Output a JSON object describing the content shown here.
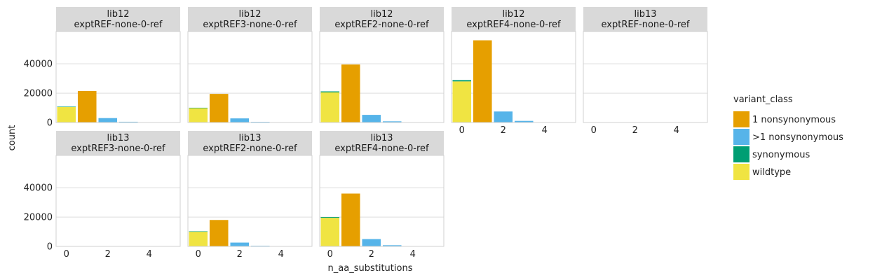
{
  "chart_data": {
    "type": "bar",
    "facet": "faceted stacked bar chart",
    "xlabel": "n_aa_substitutions",
    "ylabel": "count",
    "xlim": [
      -0.5,
      5.5
    ],
    "ylim": [
      0,
      62000
    ],
    "x_ticks": [
      0,
      2,
      4
    ],
    "y_ticks": [
      0,
      20000,
      40000
    ],
    "x_tick_labels": [
      "0",
      "2",
      "4"
    ],
    "y_tick_labels": [
      "0",
      "20000",
      "40000"
    ],
    "grid": true,
    "legend": {
      "title": "variant_class",
      "position": "right",
      "entries": [
        {
          "name": "1 nonsynonymous",
          "color": "#E69F00"
        },
        {
          "name": ">1 nonsynonymous",
          "color": "#56B4E9"
        },
        {
          "name": "synonymous",
          "color": "#009E73"
        },
        {
          "name": "wildtype",
          "color": "#F0E442"
        }
      ]
    },
    "panels": [
      {
        "strip": [
          "lib12",
          "exptREF-none-0-ref"
        ],
        "bars": [
          {
            "x": 0,
            "segments": [
              {
                "class": "wildtype",
                "value": 10500
              },
              {
                "class": "synonymous",
                "value": 300
              }
            ]
          },
          {
            "x": 1,
            "segments": [
              {
                "class": "1 nonsynonymous",
                "value": 21500
              }
            ]
          },
          {
            "x": 2,
            "segments": [
              {
                "class": ">1 nonsynonymous",
                "value": 3000
              }
            ]
          },
          {
            "x": 3,
            "segments": [
              {
                "class": ">1 nonsynonymous",
                "value": 500
              }
            ]
          },
          {
            "x": 4,
            "segments": [
              {
                "class": ">1 nonsynonymous",
                "value": 80
              }
            ]
          }
        ]
      },
      {
        "strip": [
          "lib12",
          "exptREF3-none-0-ref"
        ],
        "bars": [
          {
            "x": 0,
            "segments": [
              {
                "class": "wildtype",
                "value": 9800
              },
              {
                "class": "synonymous",
                "value": 250
              }
            ]
          },
          {
            "x": 1,
            "segments": [
              {
                "class": "1 nonsynonymous",
                "value": 19500
              }
            ]
          },
          {
            "x": 2,
            "segments": [
              {
                "class": ">1 nonsynonymous",
                "value": 2800
              }
            ]
          },
          {
            "x": 3,
            "segments": [
              {
                "class": ">1 nonsynonymous",
                "value": 450
              }
            ]
          },
          {
            "x": 4,
            "segments": [
              {
                "class": ">1 nonsynonymous",
                "value": 70
              }
            ]
          }
        ]
      },
      {
        "strip": [
          "lib12",
          "exptREF2-none-0-ref"
        ],
        "bars": [
          {
            "x": 0,
            "segments": [
              {
                "class": "wildtype",
                "value": 20500
              },
              {
                "class": "synonymous",
                "value": 700
              }
            ]
          },
          {
            "x": 1,
            "segments": [
              {
                "class": "1 nonsynonymous",
                "value": 39500
              }
            ]
          },
          {
            "x": 2,
            "segments": [
              {
                "class": ">1 nonsynonymous",
                "value": 5200
              }
            ]
          },
          {
            "x": 3,
            "segments": [
              {
                "class": ">1 nonsynonymous",
                "value": 800
              }
            ]
          },
          {
            "x": 4,
            "segments": [
              {
                "class": ">1 nonsynonymous",
                "value": 120
              }
            ]
          }
        ]
      },
      {
        "strip": [
          "lib12",
          "exptREF4-none-0-ref"
        ],
        "bars": [
          {
            "x": 0,
            "segments": [
              {
                "class": "wildtype",
                "value": 28000
              },
              {
                "class": "synonymous",
                "value": 900
              }
            ]
          },
          {
            "x": 1,
            "segments": [
              {
                "class": "1 nonsynonymous",
                "value": 56000
              }
            ]
          },
          {
            "x": 2,
            "segments": [
              {
                "class": ">1 nonsynonymous",
                "value": 7500
              }
            ]
          },
          {
            "x": 3,
            "segments": [
              {
                "class": ">1 nonsynonymous",
                "value": 1100
              }
            ]
          },
          {
            "x": 4,
            "segments": [
              {
                "class": ">1 nonsynonymous",
                "value": 150
              }
            ]
          }
        ]
      },
      {
        "strip": [
          "lib13",
          "exptREF-none-0-ref"
        ],
        "bars": []
      },
      {
        "strip": [
          "lib13",
          "exptREF3-none-0-ref"
        ],
        "bars": []
      },
      {
        "strip": [
          "lib13",
          "exptREF2-none-0-ref"
        ],
        "bars": [
          {
            "x": 0,
            "segments": [
              {
                "class": "wildtype",
                "value": 10000
              },
              {
                "class": "synonymous",
                "value": 250
              }
            ]
          },
          {
            "x": 1,
            "segments": [
              {
                "class": "1 nonsynonymous",
                "value": 18000
              }
            ]
          },
          {
            "x": 2,
            "segments": [
              {
                "class": ">1 nonsynonymous",
                "value": 2600
              }
            ]
          },
          {
            "x": 3,
            "segments": [
              {
                "class": ">1 nonsynonymous",
                "value": 450
              }
            ]
          },
          {
            "x": 4,
            "segments": [
              {
                "class": ">1 nonsynonymous",
                "value": 70
              }
            ]
          }
        ]
      },
      {
        "strip": [
          "lib13",
          "exptREF4-none-0-ref"
        ],
        "bars": [
          {
            "x": 0,
            "segments": [
              {
                "class": "wildtype",
                "value": 19500
              },
              {
                "class": "synonymous",
                "value": 500
              }
            ]
          },
          {
            "x": 1,
            "segments": [
              {
                "class": "1 nonsynonymous",
                "value": 36000
              }
            ]
          },
          {
            "x": 2,
            "segments": [
              {
                "class": ">1 nonsynonymous",
                "value": 5000
              }
            ]
          },
          {
            "x": 3,
            "segments": [
              {
                "class": ">1 nonsynonymous",
                "value": 800
              }
            ]
          },
          {
            "x": 4,
            "segments": [
              {
                "class": ">1 nonsynonymous",
                "value": 110
              }
            ]
          }
        ]
      }
    ]
  }
}
